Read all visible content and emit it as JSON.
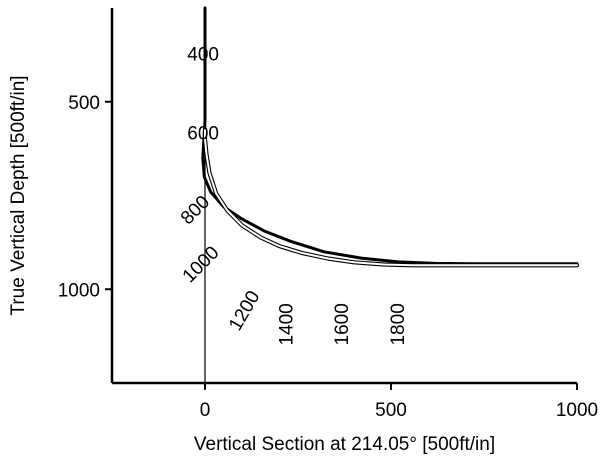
{
  "chart_data": {
    "type": "line",
    "title": "",
    "xlabel": "Vertical Section at 214.05° [500ft/in]",
    "ylabel": "True Vertical Depth [500ft/in]",
    "xlim": [
      -250,
      1000
    ],
    "ylim": [
      250,
      1250
    ],
    "y_inverted": true,
    "grid": false,
    "legend": "none",
    "x_ticks": [
      {
        "value": 0,
        "label": "0"
      },
      {
        "value": 500,
        "label": "500"
      },
      {
        "value": 1000,
        "label": "1000"
      }
    ],
    "y_ticks": [
      {
        "value": 500,
        "label": "500"
      },
      {
        "value": 1000,
        "label": "1000"
      }
    ],
    "series": [
      {
        "color": "#000000",
        "style": "thick",
        "x": [
          0,
          0,
          -3,
          -6,
          -2,
          15,
          50,
          100,
          160,
          230,
          320,
          420,
          520,
          620,
          720,
          820,
          920,
          1000
        ],
        "y": [
          250,
          550,
          600,
          650,
          700,
          740,
          780,
          813,
          845,
          872,
          900,
          917,
          927,
          931,
          932,
          932,
          932,
          932
        ]
      },
      {
        "color": "#000000",
        "style": "double-thin",
        "x": [
          0,
          0,
          4,
          12,
          30,
          60,
          100,
          150,
          200,
          260,
          330,
          400,
          480,
          560,
          640,
          720,
          820,
          920,
          1000
        ],
        "y": [
          575,
          600,
          640,
          690,
          745,
          790,
          830,
          862,
          885,
          903,
          918,
          928,
          934,
          936,
          936,
          936,
          936,
          936,
          936
        ]
      }
    ],
    "md_labels": [
      {
        "text": "400",
        "x": -5,
        "y": 390,
        "rotation": 0
      },
      {
        "text": "600",
        "x": -5,
        "y": 600,
        "rotation": 0
      },
      {
        "text": "800",
        "x": -15,
        "y": 800,
        "rotation": -45
      },
      {
        "text": "1000",
        "x": 0,
        "y": 945,
        "rotation": -45
      },
      {
        "text": "1200",
        "x": 120,
        "y": 1065,
        "rotation": -60
      },
      {
        "text": "1400",
        "x": 235,
        "y": 1150,
        "rotation": -90
      },
      {
        "text": "1600",
        "x": 385,
        "y": 1150,
        "rotation": -90
      },
      {
        "text": "1800",
        "x": 535,
        "y": 1150,
        "rotation": -90
      }
    ]
  }
}
